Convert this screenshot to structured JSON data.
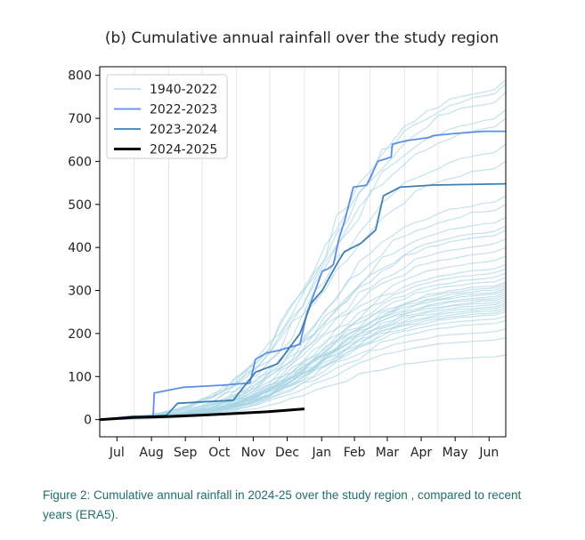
{
  "chart_data": {
    "type": "line",
    "title": "(b) Cumulative annual rainfall over the study region",
    "xlabel": "",
    "ylabel": "",
    "x_ticks": [
      "Jul",
      "Aug",
      "Sep",
      "Oct",
      "Nov",
      "Dec",
      "Jan",
      "Feb",
      "Mar",
      "Apr",
      "May",
      "Jun"
    ],
    "xlim_days": [
      0,
      365
    ],
    "ylim": [
      -40,
      820
    ],
    "y_ticks": [
      0,
      100,
      200,
      300,
      400,
      500,
      600,
      700,
      800
    ],
    "grid": "vertical",
    "legend_position": "top-left",
    "legend": [
      "1940-2022",
      "2022-2023",
      "2023-2024",
      "2024-2025"
    ],
    "series": [
      {
        "name": "2022-2023",
        "color": "#5b8fe6",
        "x": [
          0,
          30,
          48,
          49,
          75,
          110,
          135,
          140,
          150,
          160,
          180,
          186,
          200,
          205,
          210,
          215,
          220,
          228,
          240,
          250,
          262,
          263,
          275,
          295,
          300,
          320,
          345,
          365
        ],
        "y": [
          0,
          8,
          8,
          62,
          75,
          80,
          85,
          140,
          155,
          160,
          175,
          245,
          345,
          350,
          360,
          420,
          460,
          540,
          545,
          600,
          610,
          640,
          648,
          655,
          660,
          665,
          670,
          670
        ]
      },
      {
        "name": "2023-2024",
        "color": "#3f7fb2",
        "x": [
          0,
          60,
          70,
          120,
          140,
          160,
          170,
          180,
          190,
          200,
          215,
          220,
          235,
          248,
          255,
          270,
          300,
          365
        ],
        "y": [
          0,
          10,
          38,
          45,
          110,
          130,
          165,
          200,
          270,
          300,
          370,
          390,
          410,
          440,
          520,
          540,
          545,
          548
        ]
      },
      {
        "name": "2024-2025",
        "color": "#000000",
        "x": [
          0,
          30,
          60,
          90,
          120,
          150,
          170,
          184
        ],
        "y": [
          0,
          5,
          7,
          10,
          14,
          18,
          22,
          25
        ]
      }
    ],
    "historical_color": "#a8d4e4",
    "historical_final_values": [
      150,
      190,
      210,
      230,
      240,
      250,
      255,
      260,
      265,
      270,
      275,
      280,
      285,
      290,
      295,
      300,
      305,
      310,
      315,
      320,
      330,
      340,
      350,
      360,
      380,
      400,
      420,
      440,
      450,
      470,
      500,
      520,
      600,
      640,
      700,
      720,
      760,
      780,
      790
    ]
  },
  "caption": "Figure 2: Cumulative annual rainfall in 2024-25 over the study region , compared to recent years (ERA5)."
}
